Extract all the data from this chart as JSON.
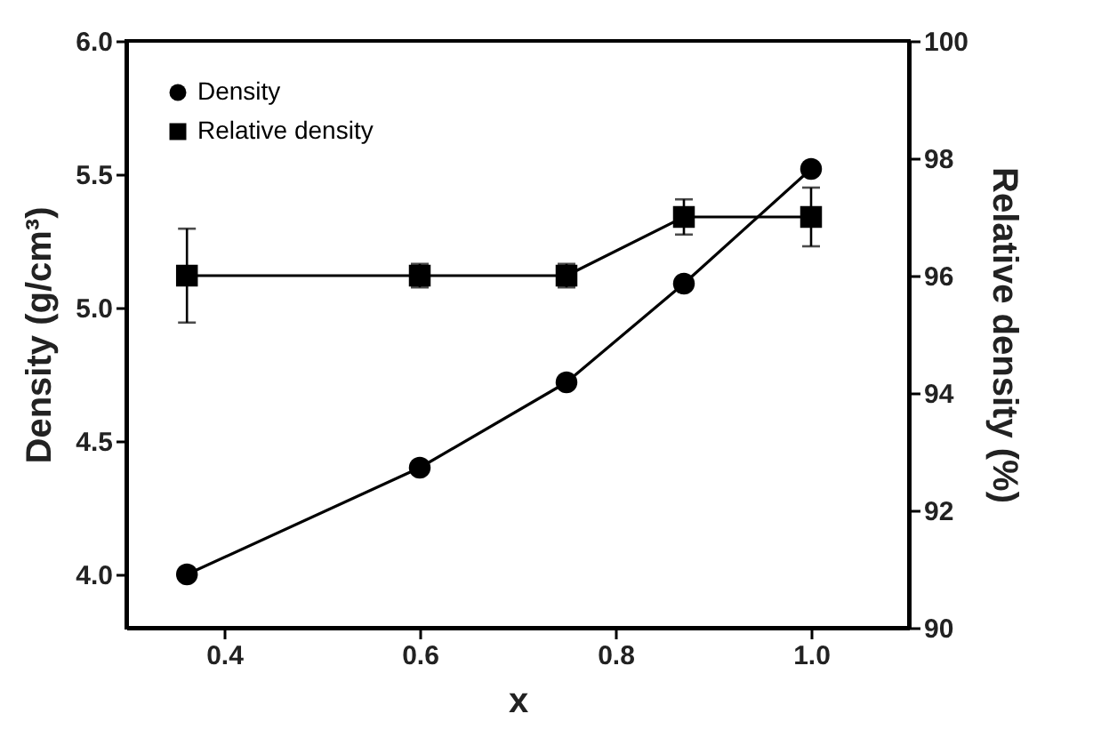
{
  "chart_data": {
    "type": "line",
    "xlabel": "x",
    "ylabel": "Density (g/cm³)",
    "y2label": "Relative density (%)",
    "x": [
      0.362,
      0.6,
      0.75,
      0.87,
      1.0
    ],
    "series": [
      {
        "name": "Density",
        "color": "#000000",
        "marker": "circle",
        "values": [
          4.0,
          4.4,
          4.72,
          5.09,
          5.52
        ]
      },
      {
        "name": "Relative density",
        "color": "#000000",
        "marker": "square",
        "axis": "y2",
        "values": [
          96.0,
          96.0,
          96.0,
          97.0,
          97.0
        ],
        "errors": [
          0.8,
          0.2,
          0.2,
          0.3,
          0.5
        ]
      }
    ],
    "xlim": [
      0.3,
      1.1
    ],
    "xticks": [
      0.4,
      0.6,
      0.8,
      {
        "value": 1,
        "label": "1.0"
      }
    ],
    "ylim": [
      3.8,
      6.0
    ],
    "yticks": [
      {
        "value": 4,
        "label": "4.0"
      },
      4.5,
      {
        "value": 5,
        "label": "5.0"
      },
      5.5,
      {
        "value": 6,
        "label": "6.0"
      }
    ],
    "y2lim": [
      90,
      100
    ],
    "y2ticks": [
      90,
      92,
      94,
      96,
      98,
      100
    ],
    "grid": false,
    "legend": "top left",
    "line_style": "solid"
  }
}
